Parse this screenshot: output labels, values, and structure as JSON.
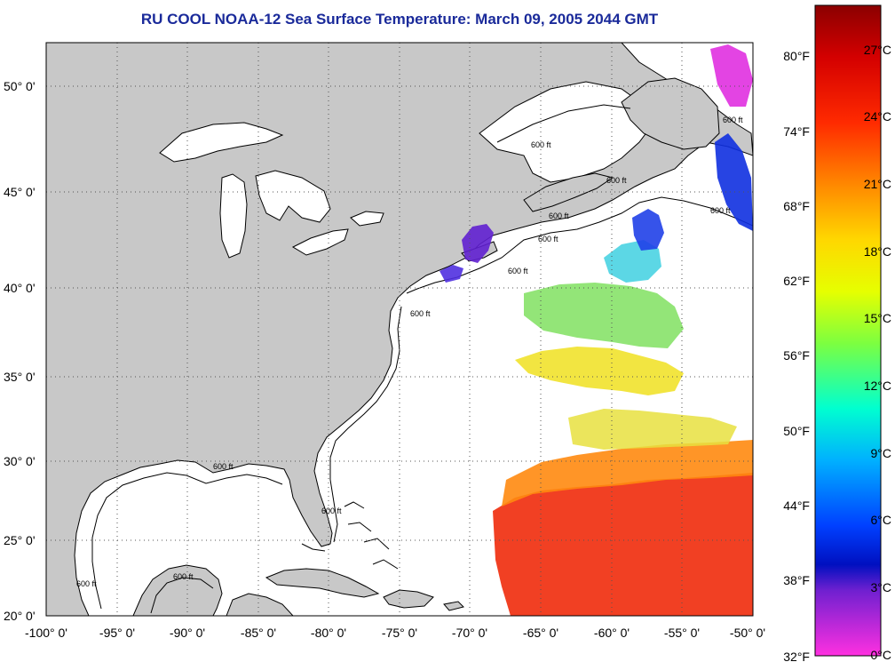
{
  "title": "RU COOL  NOAA-12  Sea Surface Temperature:  March 09, 2005 2044 GMT",
  "lat_labels": [
    "50° 0'",
    "45° 0'",
    "40° 0'",
    "35° 0'",
    "30° 0'",
    "25° 0'",
    "20° 0'"
  ],
  "lon_labels": [
    "-100° 0'",
    "-95° 0'",
    "-90° 0'",
    "-85° 0'",
    "-80° 0'",
    "-75° 0'",
    "-70° 0'",
    "-65° 0'",
    "-60° 0'",
    "-55° 0'",
    "-50° 0'"
  ],
  "isobath_labels": [
    "600 ft",
    "600 ft",
    "600 ft",
    "600 ft",
    "600 ft",
    "600 ft",
    "600 ft",
    "600 ft",
    "600 ft",
    "600 ft",
    "600 ft",
    "600 ft"
  ],
  "colorbar": {
    "fahrenheit_labels": [
      "80°F",
      "74°F",
      "68°F",
      "62°F",
      "56°F",
      "50°F",
      "44°F",
      "38°F",
      "32°F"
    ],
    "celsius_labels": [
      "27°C",
      "24°C",
      "21°C",
      "18°C",
      "15°C",
      "12°C",
      "9°C",
      "6°C",
      "3°C",
      "0°C"
    ]
  },
  "colors": {
    "title": "#1a2a9a",
    "land": "#c8c8c8",
    "ocean": "#ffffff",
    "warm": "#f03010",
    "cold": "#2030e0"
  }
}
